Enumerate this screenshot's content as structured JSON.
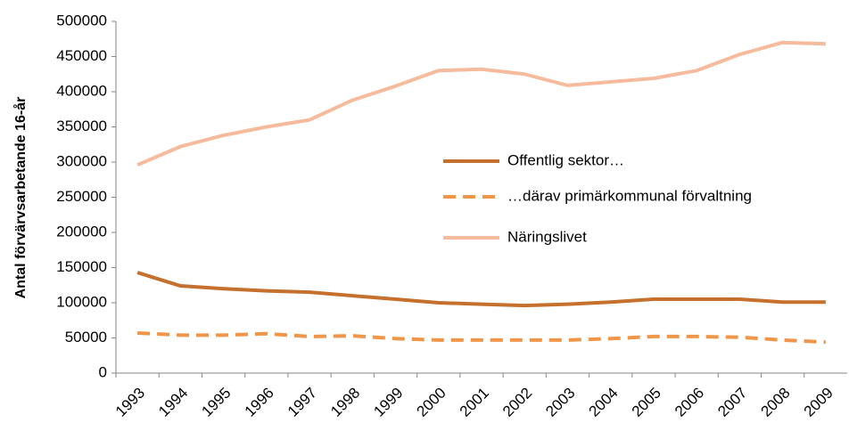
{
  "chart_data": {
    "type": "line",
    "y_label": "Antal förvärvsarbetande 16-år",
    "categories": [
      "1993",
      "1994",
      "1995",
      "1996",
      "1997",
      "1998",
      "1999",
      "2000",
      "2001",
      "2002",
      "2003",
      "2004",
      "2005",
      "2006",
      "2007",
      "2008",
      "2009"
    ],
    "series": [
      {
        "name": "Offentlig sektor…",
        "color": "#c5702d",
        "dash": false,
        "values": [
          143000,
          124000,
          120000,
          117000,
          115000,
          110000,
          105000,
          100000,
          98000,
          96000,
          98000,
          101000,
          105000,
          105000,
          105000,
          101000,
          101000
        ]
      },
      {
        "name": "…därav primärkommunal förvaltning",
        "color": "#f0964a",
        "dash": true,
        "values": [
          57000,
          54000,
          54000,
          56000,
          52000,
          53000,
          49000,
          47000,
          47000,
          47000,
          47000,
          49000,
          52000,
          52000,
          51000,
          47000,
          44000
        ]
      },
      {
        "name": "Näringslivet",
        "color": "#f5bb9c",
        "dash": false,
        "values": [
          296000,
          322000,
          338000,
          350000,
          360000,
          388000,
          408000,
          430000,
          432000,
          425000,
          409000,
          414000,
          419000,
          430000,
          453000,
          470000,
          468000
        ]
      }
    ],
    "ylim": [
      0,
      500000
    ],
    "yticks": [
      0,
      50000,
      100000,
      150000,
      200000,
      250000,
      300000,
      350000,
      400000,
      450000,
      500000
    ]
  }
}
